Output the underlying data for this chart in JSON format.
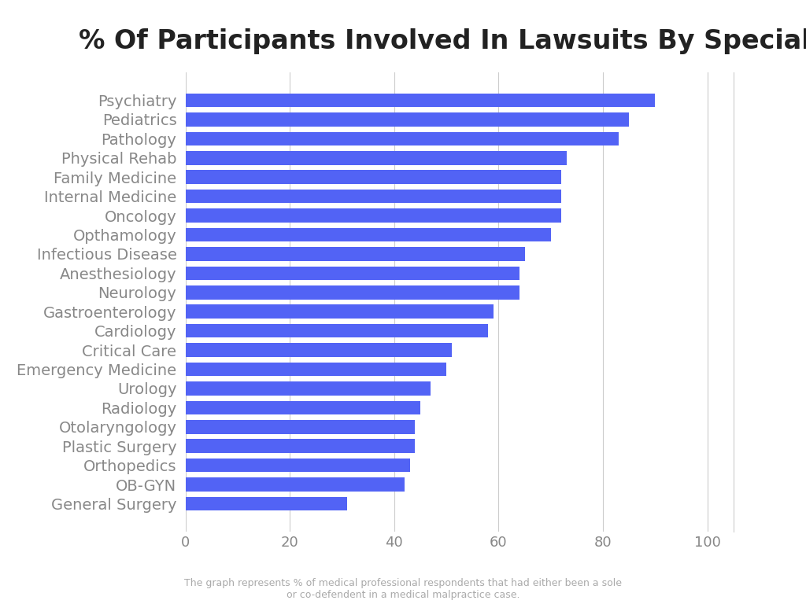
{
  "title": "% Of Participants Involved In Lawsuits By Specialty",
  "categories": [
    "General Surgery",
    "OB-GYN",
    "Orthopedics",
    "Plastic Surgery",
    "Otolaryngology",
    "Radiology",
    "Urology",
    "Emergency Medicine",
    "Critical Care",
    "Cardiology",
    "Gastroenterology",
    "Neurology",
    "Anesthesiology",
    "Infectious Disease",
    "Opthamology",
    "Oncology",
    "Internal Medicine",
    "Family Medicine",
    "Physical Rehab",
    "Pathology",
    "Pediatrics",
    "Psychiatry"
  ],
  "values": [
    90,
    85,
    83,
    73,
    72,
    72,
    72,
    70,
    65,
    64,
    64,
    59,
    58,
    51,
    50,
    47,
    45,
    44,
    44,
    43,
    42,
    31
  ],
  "bar_color": "#5263f5",
  "background_color": "#ffffff",
  "xlim": [
    0,
    105
  ],
  "xticks": [
    0,
    20,
    40,
    60,
    80,
    100
  ],
  "title_fontsize": 24,
  "label_fontsize": 14,
  "tick_fontsize": 13,
  "footnote": "The graph represents % of medical professional respondents that had either been a sole\nor co-defendent in a medical malpractice case.",
  "footnote_fontsize": 9,
  "grid_color": "#cccccc",
  "right_spine_color": "#cccccc"
}
